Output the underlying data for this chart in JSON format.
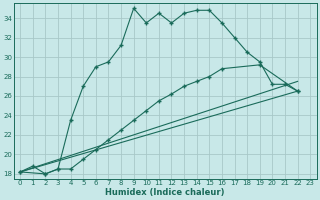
{
  "xlabel": "Humidex (Indice chaleur)",
  "background_color": "#c8e8e8",
  "grid_color": "#a8c8c8",
  "line_color": "#1a6b5a",
  "xlim": [
    -0.5,
    23.5
  ],
  "ylim": [
    17.5,
    35.5
  ],
  "yticks": [
    18,
    20,
    22,
    24,
    26,
    28,
    30,
    32,
    34
  ],
  "xticks": [
    0,
    1,
    2,
    3,
    4,
    5,
    6,
    7,
    8,
    9,
    10,
    11,
    12,
    13,
    14,
    15,
    16,
    17,
    18,
    19,
    20,
    21,
    22,
    23
  ],
  "curve1_x": [
    0,
    1,
    2,
    3,
    4,
    5,
    6,
    7,
    8,
    9,
    10,
    11,
    12,
    13,
    14,
    15,
    16,
    17,
    18,
    19,
    20,
    21,
    22
  ],
  "curve1_y": [
    18.2,
    18.8,
    18.0,
    18.5,
    23.5,
    27.0,
    29.0,
    29.5,
    31.2,
    35.0,
    33.5,
    34.5,
    33.5,
    34.5,
    34.8,
    34.8,
    33.5,
    32.0,
    30.5,
    29.5,
    27.2,
    27.2,
    26.5
  ],
  "curve2_x": [
    0,
    2,
    3,
    4,
    5,
    6,
    7,
    8,
    9,
    10,
    11,
    12,
    13,
    14,
    15,
    16,
    19,
    22
  ],
  "curve2_y": [
    18.2,
    18.0,
    18.5,
    18.5,
    19.5,
    20.5,
    21.5,
    22.5,
    23.5,
    24.5,
    25.5,
    26.2,
    27.0,
    27.5,
    28.0,
    28.8,
    29.2,
    26.5
  ],
  "line3_x": [
    0,
    22
  ],
  "line3_y": [
    18.2,
    26.5
  ],
  "line4_x": [
    0,
    22
  ],
  "line4_y": [
    18.2,
    27.5
  ]
}
